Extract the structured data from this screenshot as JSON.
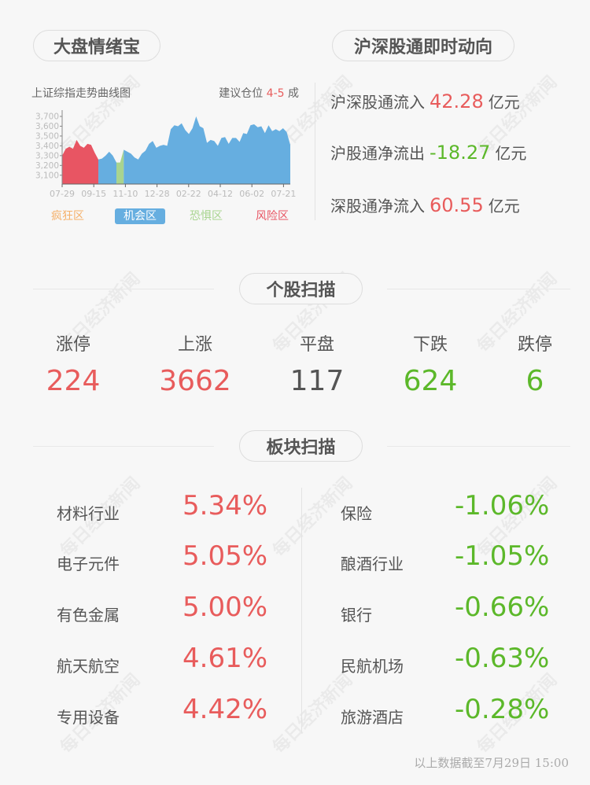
{
  "watermark": "每日经济新闻",
  "mood": {
    "title": "大盘情绪宝",
    "chart_title": "上证综指走势曲线图",
    "advice_prefix": "建议仓位",
    "advice_value": "4-5",
    "advice_suffix": "成"
  },
  "flow": {
    "title": "沪深股通即时动向",
    "rows": [
      {
        "label": "沪深股通流入",
        "value": "42.28",
        "unit": "亿元",
        "color": "#e85c5c"
      },
      {
        "label": "沪股通净流出",
        "value": "-18.27",
        "unit": "亿元",
        "color": "#5cb82a"
      },
      {
        "label": "深股通净流入",
        "value": "60.55",
        "unit": "亿元",
        "color": "#e85c5c"
      }
    ]
  },
  "chart_data": {
    "type": "area",
    "xticks": [
      "07-29",
      "09-15",
      "11-10",
      "12-28",
      "02-22",
      "04-12",
      "06-02",
      "07-21"
    ],
    "yticks": [
      "3,100",
      "3,200",
      "3,300",
      "3,400",
      "3,500",
      "3,600",
      "3,700"
    ],
    "ylim": [
      3010,
      3720
    ],
    "zones": [
      {
        "label": "疯狂区",
        "color": "#f5b06a",
        "active": false
      },
      {
        "label": "机会区",
        "color": "#66aee0",
        "active": true
      },
      {
        "label": "恐惧区",
        "color": "#a8d48f",
        "active": false
      },
      {
        "label": "风险区",
        "color": "#e85563",
        "active": false
      }
    ],
    "series": [
      {
        "zone": "风险区",
        "color": "#e85563",
        "values": [
          3300,
          3370,
          3390,
          3370,
          3460,
          3400,
          3380,
          3420,
          3410,
          3330,
          3260
        ]
      },
      {
        "zone": "机会区",
        "color": "#66aee0",
        "values": [
          3260,
          3270,
          3300,
          3340,
          3300,
          3230
        ]
      },
      {
        "zone": "恐惧区",
        "color": "#a8d48f",
        "values": [
          3230,
          3230,
          3360
        ]
      },
      {
        "zone": "机会区",
        "color": "#66aee0",
        "values": [
          3360,
          3340,
          3320,
          3280,
          3260,
          3320,
          3350,
          3420,
          3450,
          3380,
          3400,
          3410,
          3400,
          3570,
          3610,
          3600,
          3630,
          3560,
          3520,
          3580,
          3700,
          3600,
          3580,
          3430,
          3460,
          3450,
          3400,
          3480,
          3490,
          3420,
          3480,
          3480,
          3440,
          3530,
          3520,
          3610,
          3620,
          3590,
          3600,
          3530,
          3610,
          3550,
          3570,
          3550,
          3580,
          3540,
          3410
        ]
      }
    ]
  },
  "stocks": {
    "title": "个股扫描",
    "items": [
      {
        "label": "涨停",
        "value": "224",
        "color": "#e85c5c"
      },
      {
        "label": "上涨",
        "value": "3662",
        "color": "#e85c5c"
      },
      {
        "label": "平盘",
        "value": "117",
        "color": "#555555"
      },
      {
        "label": "下跌",
        "value": "624",
        "color": "#5cb82a"
      },
      {
        "label": "跌停",
        "value": "6",
        "color": "#5cb82a"
      }
    ]
  },
  "sectors": {
    "title": "板块扫描",
    "up": [
      {
        "name": "材料行业",
        "value": "5.34%"
      },
      {
        "name": "电子元件",
        "value": "5.05%"
      },
      {
        "name": "有色金属",
        "value": "5.00%"
      },
      {
        "name": "航天航空",
        "value": "4.61%"
      },
      {
        "name": "专用设备",
        "value": "4.42%"
      }
    ],
    "down": [
      {
        "name": "保险",
        "value": "-1.06%"
      },
      {
        "name": "酿酒行业",
        "value": "-1.05%"
      },
      {
        "name": "银行",
        "value": "-0.66%"
      },
      {
        "name": "民航机场",
        "value": "-0.63%"
      },
      {
        "name": "旅游酒店",
        "value": "-0.28%"
      }
    ]
  },
  "footer": "以上数据截至7月29日 15:00"
}
